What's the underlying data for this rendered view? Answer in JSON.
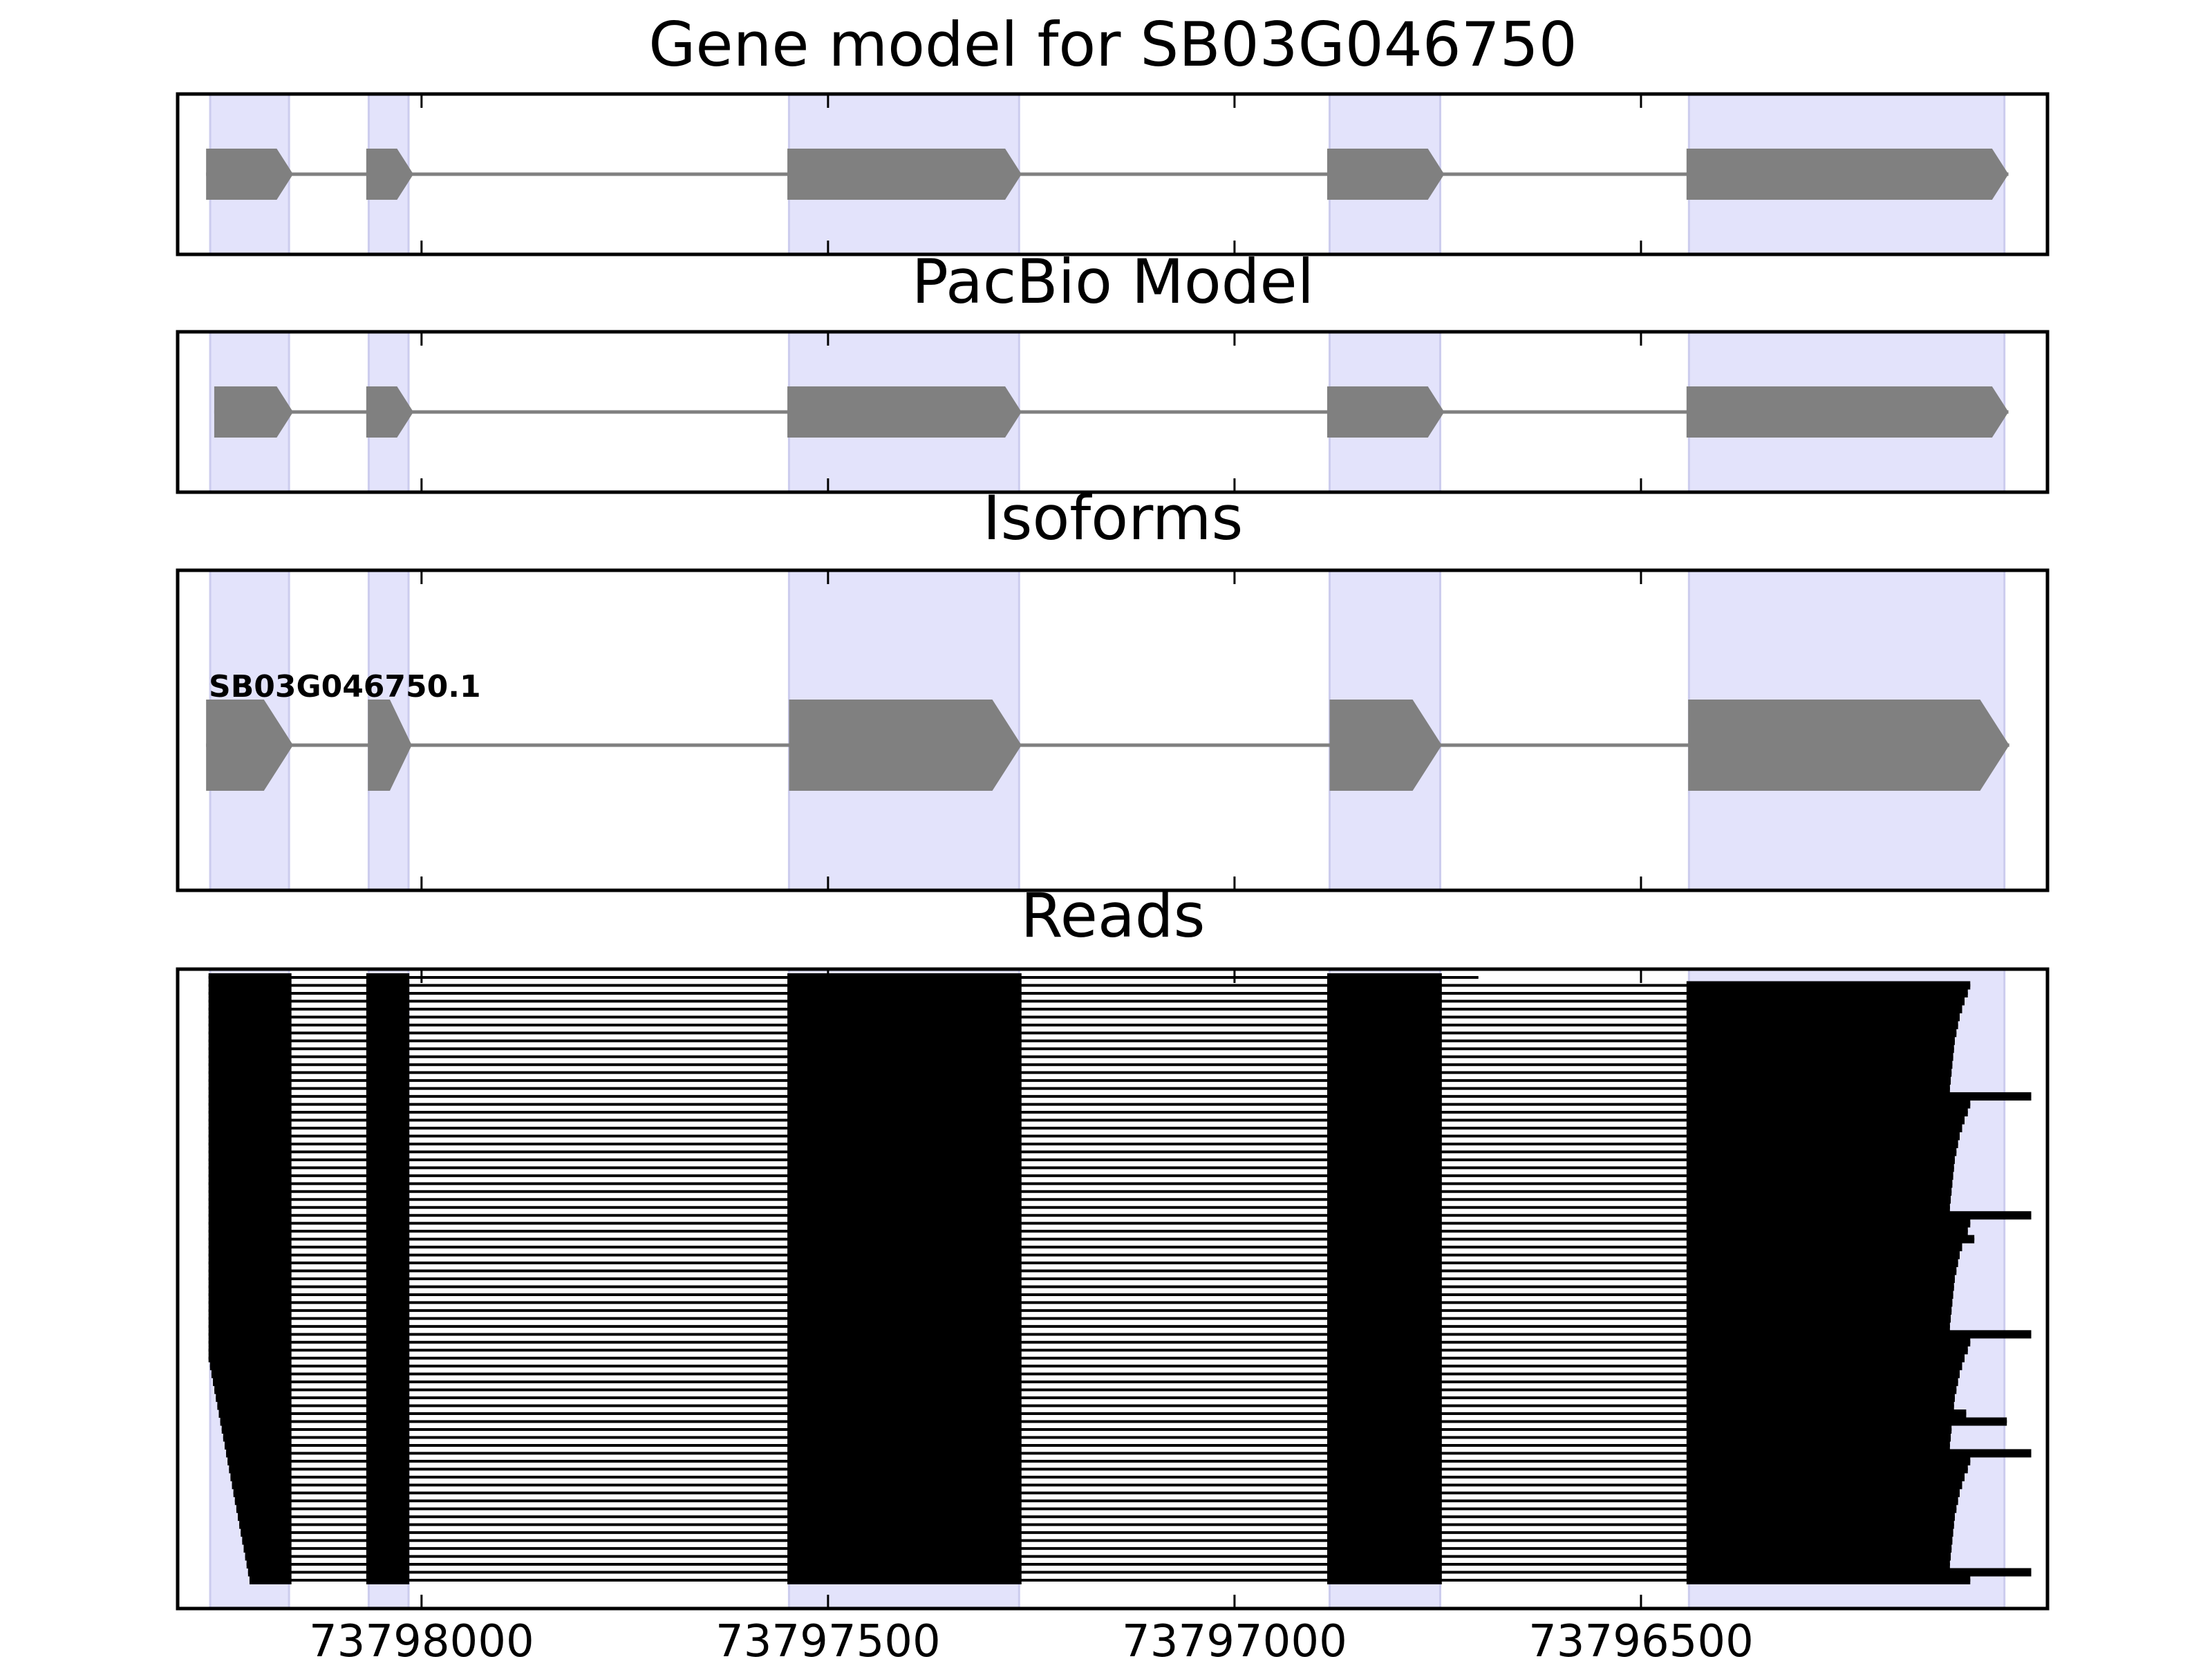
{
  "panels": [
    {
      "title": "Gene model for SB03G046750",
      "kind": "gene"
    },
    {
      "title": "PacBio Model",
      "kind": "gene"
    },
    {
      "title": "Isoforms",
      "kind": "isoform",
      "isoform_label": "SB03G046750.1"
    },
    {
      "title": "Reads",
      "kind": "reads"
    }
  ],
  "x_axis": {
    "ticks": [
      73798000,
      73797500,
      73797000,
      73796500
    ],
    "tick_labels": [
      "73798000",
      "73797500",
      "73797000",
      "73796500"
    ],
    "range": [
      73798300,
      73796000
    ],
    "direction": "decreasing"
  },
  "shaded_regions": [
    [
      73798260,
      73798163
    ],
    [
      73798065,
      73798016
    ],
    [
      73797548,
      73797265
    ],
    [
      73796883,
      73796747
    ],
    [
      73796441,
      73796053
    ]
  ],
  "gene_model_exons": [
    [
      73798265,
      73798158
    ],
    [
      73798068,
      73798010
    ],
    [
      73797550,
      73797262
    ],
    [
      73796886,
      73796742
    ],
    [
      73796444,
      73796048
    ]
  ],
  "pacbio_model_exons": [
    [
      73798255,
      73798158
    ],
    [
      73798068,
      73798010
    ],
    [
      73797550,
      73797262
    ],
    [
      73796886,
      73796742
    ],
    [
      73796444,
      73796048
    ]
  ],
  "isoform_exons": [
    [
      73798265,
      73798158
    ],
    [
      73798066,
      73798012
    ],
    [
      73797548,
      73797262
    ],
    [
      73796883,
      73796745
    ],
    [
      73796442,
      73796047
    ]
  ],
  "reads": {
    "count": 77,
    "exon_blocks": [
      [
        73798262,
        73798160
      ],
      [
        73798068,
        73798015
      ],
      [
        73797550,
        73797262
      ],
      [
        73796886,
        73796745
      ],
      [
        73796444,
        73796120
      ]
    ],
    "colors": {
      "shade": "#e3e3fb",
      "exon": "#808080",
      "read": "#000000"
    }
  }
}
